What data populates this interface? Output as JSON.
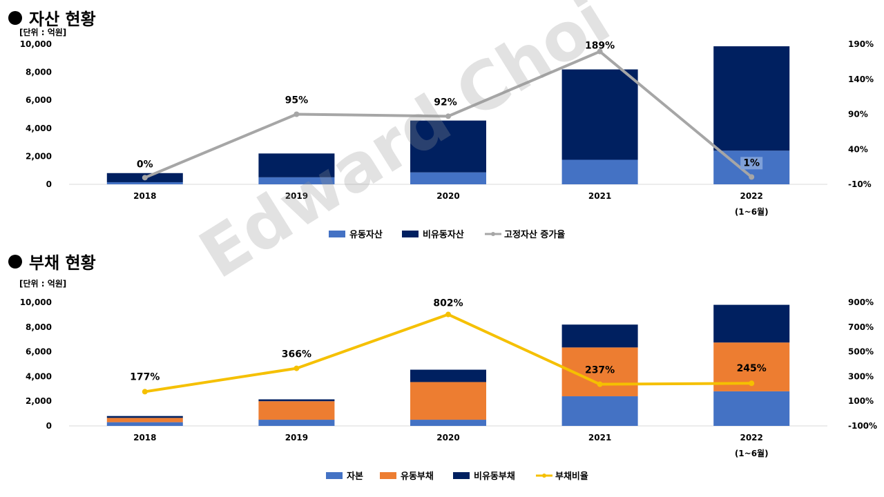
{
  "asset_section": {
    "title": "자산 현황",
    "unit": "[단위 : 억원]"
  },
  "debt_section": {
    "title": "부채 현황",
    "unit": "[단위 : 억원]"
  },
  "watermark": "Edward Choi",
  "chart_data": [
    {
      "type": "bar",
      "stacked": true,
      "categories": [
        "2018",
        "2019",
        "2020",
        "2021",
        "2022"
      ],
      "category_sublabels": [
        "",
        "",
        "",
        "",
        "(1~6월)"
      ],
      "series": [
        {
          "name": "유동자산",
          "values": [
            150,
            500,
            850,
            1750,
            2400
          ],
          "color": "#4472C4"
        },
        {
          "name": "비유동자산",
          "values": [
            650,
            1700,
            3700,
            6450,
            7450
          ],
          "color": "#002060"
        }
      ],
      "line_series": {
        "name": "고정자산 증가율",
        "values": [
          0,
          95,
          92,
          189,
          1
        ],
        "labels": [
          "0%",
          "95%",
          "92%",
          "189%",
          "1%"
        ],
        "color": "#A6A6A6",
        "axis": "right"
      },
      "ylim": [
        0,
        10000
      ],
      "yticks": [
        "0",
        "2,000",
        "4,000",
        "6,000",
        "8,000",
        "10,000"
      ],
      "y2lim": [
        -10,
        200
      ],
      "y2ticks": [
        "-10%",
        "40%",
        "90%",
        "140%",
        "190%"
      ],
      "legend": "bottom"
    },
    {
      "type": "bar",
      "stacked": true,
      "categories": [
        "2018",
        "2019",
        "2020",
        "2021",
        "2022"
      ],
      "category_sublabels": [
        "",
        "",
        "",
        "",
        "(1~6월)"
      ],
      "series": [
        {
          "name": "자본",
          "values": [
            300,
            500,
            500,
            2400,
            2800
          ],
          "color": "#4472C4"
        },
        {
          "name": "유동부채",
          "values": [
            350,
            1500,
            3050,
            3950,
            3950
          ],
          "color": "#ED7D31"
        },
        {
          "name": "비유동부채",
          "values": [
            150,
            150,
            1000,
            1850,
            3050
          ],
          "color": "#002060"
        }
      ],
      "line_series": {
        "name": "부채비율",
        "values": [
          177,
          366,
          802,
          237,
          245
        ],
        "labels": [
          "177%",
          "366%",
          "802%",
          "237%",
          "245%"
        ],
        "color": "#F5C000",
        "axis": "right"
      },
      "ylim": [
        0,
        10000
      ],
      "yticks": [
        "0",
        "2,000",
        "4,000",
        "6,000",
        "8,000",
        "10,000"
      ],
      "y2lim": [
        -100,
        900
      ],
      "y2ticks": [
        "-100%",
        "100%",
        "300%",
        "500%",
        "700%",
        "900%"
      ],
      "legend": "bottom"
    }
  ]
}
